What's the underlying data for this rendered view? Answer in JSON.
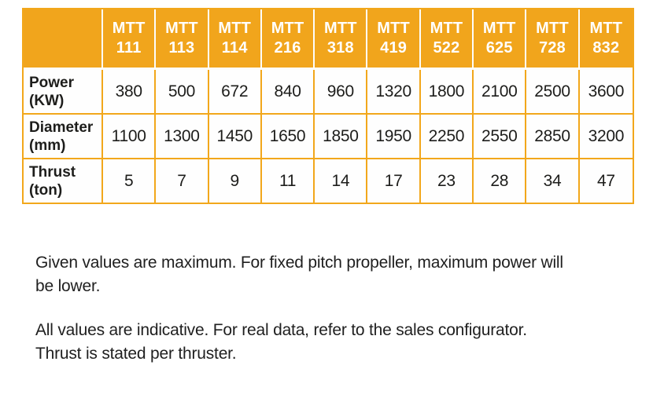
{
  "colors": {
    "header_bg": "#f1a51c",
    "table_border": "#f2a71b",
    "header_separator": "#ffffff",
    "header_text": "#ffffff",
    "body_text": "#1d1d1b",
    "page_bg": "#ffffff"
  },
  "table": {
    "corner_label": "",
    "model_prefix": "MTT",
    "models": [
      "111",
      "113",
      "114",
      "216",
      "318",
      "419",
      "522",
      "625",
      "728",
      "832"
    ],
    "rows": [
      {
        "label": "Power",
        "unit": "(KW)",
        "values": [
          "380",
          "500",
          "672",
          "840",
          "960",
          "1320",
          "1800",
          "2100",
          "2500",
          "3600"
        ]
      },
      {
        "label": "Diameter",
        "unit": "(mm)",
        "values": [
          "1100",
          "1300",
          "1450",
          "1650",
          "1850",
          "1950",
          "2250",
          "2550",
          "2850",
          "3200"
        ]
      },
      {
        "label": "Thrust",
        "unit": "(ton)",
        "values": [
          "5",
          "7",
          "9",
          "11",
          "14",
          "17",
          "23",
          "28",
          "34",
          "47"
        ]
      }
    ]
  },
  "notes": [
    {
      "lines": [
        "Given values are maximum. For fixed pitch propeller, maximum power will",
        "be lower."
      ]
    },
    {
      "lines": [
        "All values are indicative. For real data, refer to the sales configurator.",
        "Thrust is stated per thruster."
      ]
    }
  ]
}
